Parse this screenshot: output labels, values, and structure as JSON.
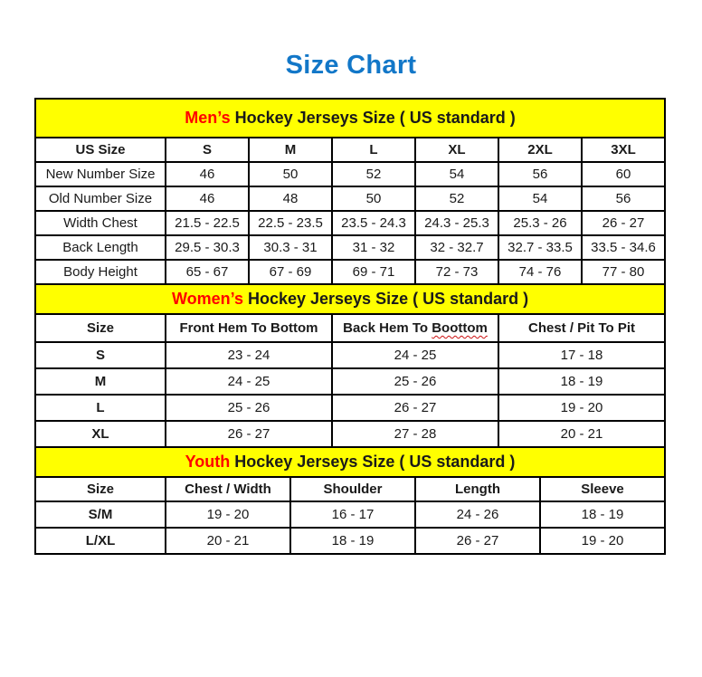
{
  "page": {
    "title": "Size Chart",
    "title_color": "#1277c8"
  },
  "colors": {
    "section_header_bg": "#ffff00",
    "accent_red": "#ff0000",
    "border": "#000000",
    "spellcheck_squiggle": "#cc1111"
  },
  "tables": {
    "mens": {
      "title_accent": "Men’s",
      "title_rest": " Hockey Jerseys Size ( US standard )",
      "columns": [
        "US Size",
        "S",
        "M",
        "L",
        "XL",
        "2XL",
        "3XL"
      ],
      "rows": [
        {
          "label": "New Number Size",
          "values": [
            "46",
            "50",
            "52",
            "54",
            "56",
            "60"
          ]
        },
        {
          "label": "Old Number Size",
          "values": [
            "46",
            "48",
            "50",
            "52",
            "54",
            "56"
          ]
        },
        {
          "label": "Width Chest",
          "values": [
            "21.5 - 22.5",
            "22.5 - 23.5",
            "23.5 - 24.3",
            "24.3 - 25.3",
            "25.3 - 26",
            "26 - 27"
          ]
        },
        {
          "label": "Back Length",
          "values": [
            "29.5 - 30.3",
            "30.3 - 31",
            "31 - 32",
            "32 - 32.7",
            "32.7 - 33.5",
            "33.5 - 34.6"
          ]
        },
        {
          "label": "Body Height",
          "values": [
            "65 - 67",
            "67 - 69",
            "69 - 71",
            "72 - 73",
            "74 - 76",
            "77 - 80"
          ]
        }
      ]
    },
    "womens": {
      "title_accent": "Women’s",
      "title_rest": " Hockey Jerseys Size ( US standard )",
      "columns": [
        "Size",
        "Front Hem To Bottom",
        "Back Hem To Boottom",
        "Chest / Pit To Pit"
      ],
      "spell_error": {
        "column": 2,
        "prefix": "Back Hem To",
        "word": "Boottom"
      },
      "rows": [
        {
          "label": "S",
          "values": [
            "23 - 24",
            "24 - 25",
            "17 - 18"
          ]
        },
        {
          "label": "M",
          "values": [
            "24 - 25",
            "25 - 26",
            "18 - 19"
          ]
        },
        {
          "label": "L",
          "values": [
            "25 - 26",
            "26 - 27",
            "19 - 20"
          ]
        },
        {
          "label": "XL",
          "values": [
            "26 - 27",
            "27 - 28",
            "20 - 21"
          ]
        }
      ]
    },
    "youth": {
      "title_accent": "Youth",
      "title_rest": " Hockey Jerseys Size ( US standard )",
      "columns": [
        "Size",
        "Chest / Width",
        "Shoulder",
        "Length",
        "Sleeve"
      ],
      "rows": [
        {
          "label": "S/M",
          "values": [
            "19 - 20",
            "16 - 17",
            "24 - 26",
            "18 - 19"
          ]
        },
        {
          "label": "L/XL",
          "values": [
            "20 - 21",
            "18 - 19",
            "26 - 27",
            "19 - 20"
          ]
        }
      ]
    }
  }
}
